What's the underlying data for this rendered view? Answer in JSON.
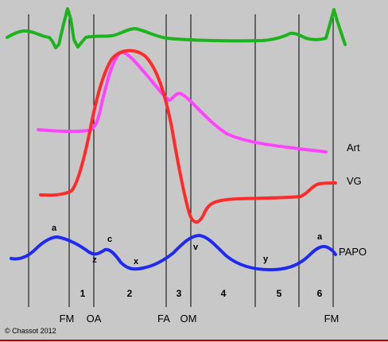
{
  "trace_labels": {
    "art": "Art",
    "vg": "VG",
    "papo": "PAPO"
  },
  "wave_labels": {
    "a1": "a",
    "c": "c",
    "z": "z",
    "x": "x",
    "v": "v",
    "y": "y",
    "a2": "a"
  },
  "phase_labels": [
    "1",
    "2",
    "3",
    "4",
    "5",
    "6"
  ],
  "event_labels": {
    "fm1": "FM",
    "oa": "OA",
    "fa": "FA",
    "om": "OM",
    "fm2": "FM"
  },
  "credit": "© Chassot  2012",
  "colors": {
    "background": "#c8c8c8",
    "ecg": "#1db31d",
    "arterial": "#ff44ff",
    "ventricular": "#ff2a2a",
    "papo": "#1f2af0",
    "lines": "#000000",
    "baseline": "#c00000"
  }
}
